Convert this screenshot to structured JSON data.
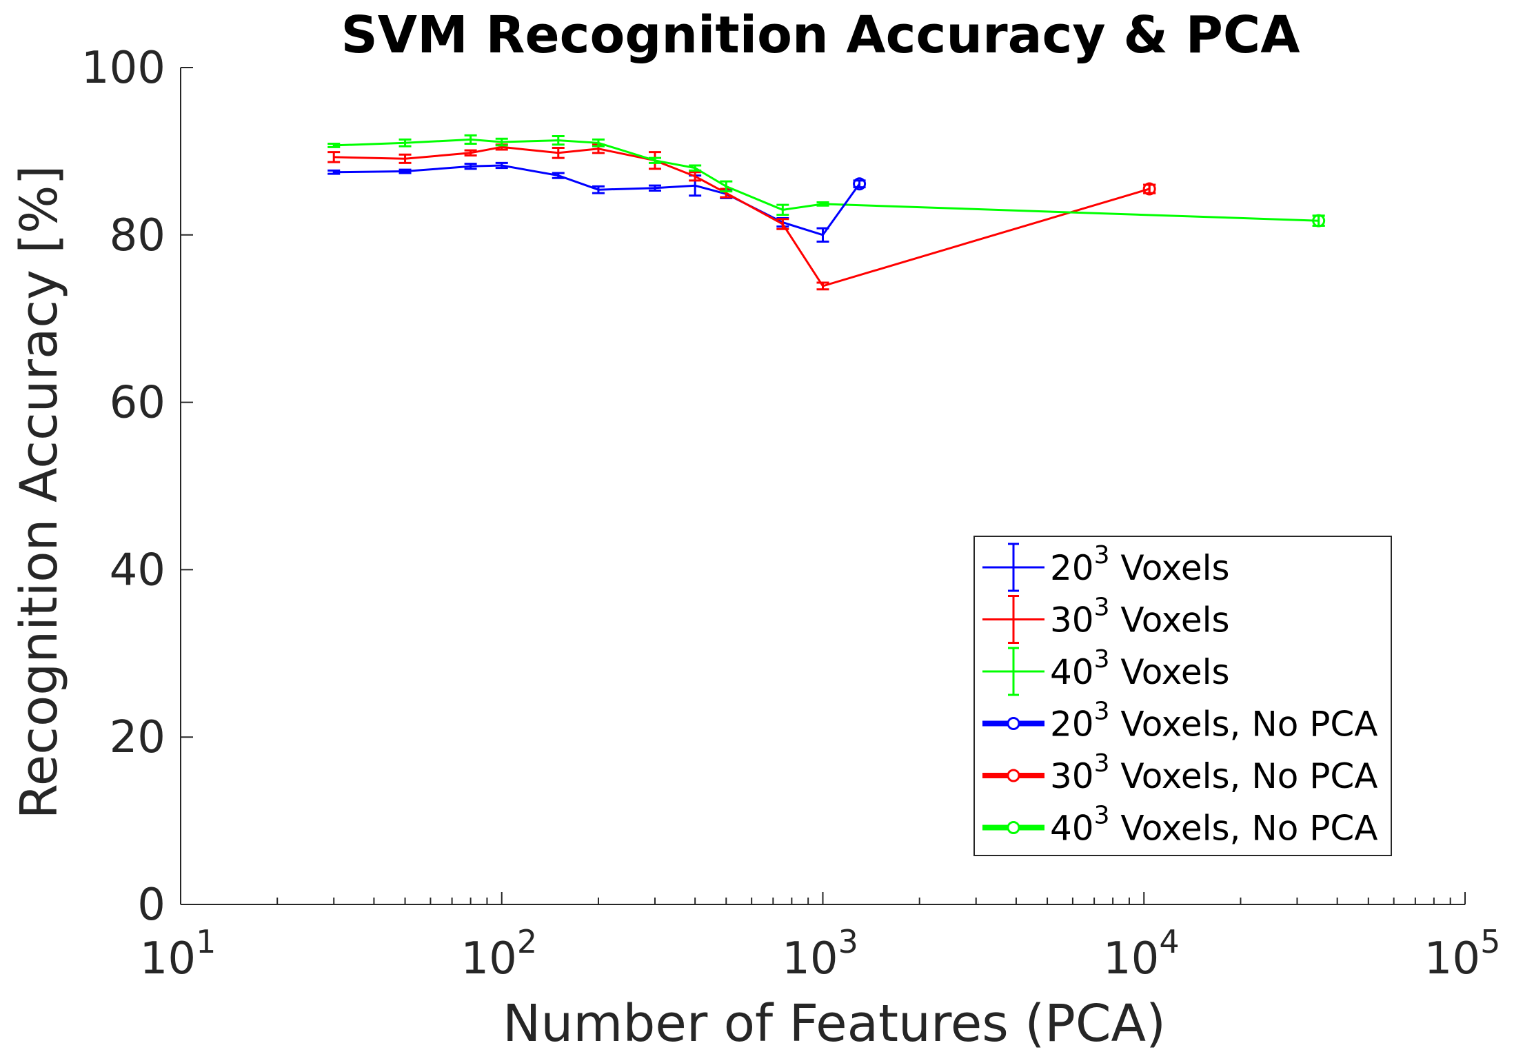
{
  "chart_data": {
    "type": "line",
    "title": "SVM Recognition Accuracy & PCA",
    "xlabel": "Number of Features (PCA)",
    "ylabel": "Recognition Accuracy [%]",
    "xscale": "log",
    "xlim": [
      10,
      100000
    ],
    "ylim": [
      0,
      100
    ],
    "x_ticks": [
      {
        "base": "10",
        "exp": "1",
        "value": 10
      },
      {
        "base": "10",
        "exp": "2",
        "value": 100
      },
      {
        "base": "10",
        "exp": "3",
        "value": 1000
      },
      {
        "base": "10",
        "exp": "4",
        "value": 10000
      },
      {
        "base": "10",
        "exp": "5",
        "value": 100000
      }
    ],
    "y_ticks": [
      {
        "label": "0",
        "value": 0
      },
      {
        "label": "20",
        "value": 20
      },
      {
        "label": "40",
        "value": 40
      },
      {
        "label": "60",
        "value": 60
      },
      {
        "label": "80",
        "value": 80
      },
      {
        "label": "100",
        "value": 100
      }
    ],
    "grid": false,
    "legend_position": "bottom-right",
    "series": [
      {
        "name": "20 Voxels",
        "name_base": "20",
        "name_sup": "3",
        "name_rest": " Voxels",
        "color": "#0000ff",
        "style": "errorbar",
        "x": [
          30,
          50,
          80,
          100,
          150,
          200,
          300,
          400,
          500,
          750,
          1000
        ],
        "y": [
          87.5,
          87.6,
          88.2,
          88.3,
          87.1,
          85.4,
          85.6,
          85.9,
          84.9,
          81.5,
          80.0
        ],
        "err": [
          0.2,
          0.2,
          0.3,
          0.3,
          0.3,
          0.4,
          0.3,
          1.2,
          0.5,
          0.5,
          0.8
        ]
      },
      {
        "name": "30 Voxels",
        "name_base": "30",
        "name_sup": "3",
        "name_rest": " Voxels",
        "color": "#ff0000",
        "style": "errorbar",
        "x": [
          30,
          50,
          80,
          100,
          150,
          200,
          300,
          400,
          500,
          750,
          1000,
          10400
        ],
        "y": [
          89.3,
          89.1,
          89.8,
          90.5,
          89.8,
          90.3,
          88.9,
          87.0,
          85.0,
          81.3,
          73.9,
          85.5
        ],
        "err": [
          0.6,
          0.5,
          0.3,
          0.3,
          0.6,
          0.5,
          1.0,
          0.5,
          0.5,
          0.6,
          0.4,
          0.5
        ]
      },
      {
        "name": "40 Voxels",
        "name_base": "40",
        "name_sup": "3",
        "name_rest": " Voxels",
        "color": "#00ff00",
        "style": "errorbar",
        "x": [
          30,
          50,
          80,
          100,
          150,
          200,
          300,
          400,
          500,
          750,
          1000,
          35000
        ],
        "y": [
          90.7,
          91.0,
          91.4,
          91.1,
          91.3,
          91.0,
          88.9,
          88.0,
          85.8,
          83.0,
          83.7,
          81.7
        ],
        "err": [
          0.2,
          0.4,
          0.5,
          0.4,
          0.5,
          0.4,
          0.3,
          0.3,
          0.6,
          0.6,
          0.2,
          0.6
        ]
      },
      {
        "name": "20 Voxels, No PCA",
        "name_base": "20",
        "name_sup": "3",
        "name_rest": " Voxels, No PCA",
        "color": "#0000ff",
        "style": "marker-circle",
        "connect_from_last_of": 0,
        "x": [
          1300
        ],
        "y": [
          86.1
        ],
        "err": [
          0.4
        ]
      },
      {
        "name": "30 Voxels, No PCA",
        "name_base": "30",
        "name_sup": "3",
        "name_rest": " Voxels, No PCA",
        "color": "#ff0000",
        "style": "marker-circle",
        "x": [
          10400
        ],
        "y": [
          85.5
        ],
        "err": [
          0.5
        ]
      },
      {
        "name": "40 Voxels, No PCA",
        "name_base": "40",
        "name_sup": "3",
        "name_rest": " Voxels, No PCA",
        "color": "#00ff00",
        "style": "marker-circle",
        "x": [
          35000
        ],
        "y": [
          81.7
        ],
        "err": [
          0.6
        ]
      }
    ]
  }
}
